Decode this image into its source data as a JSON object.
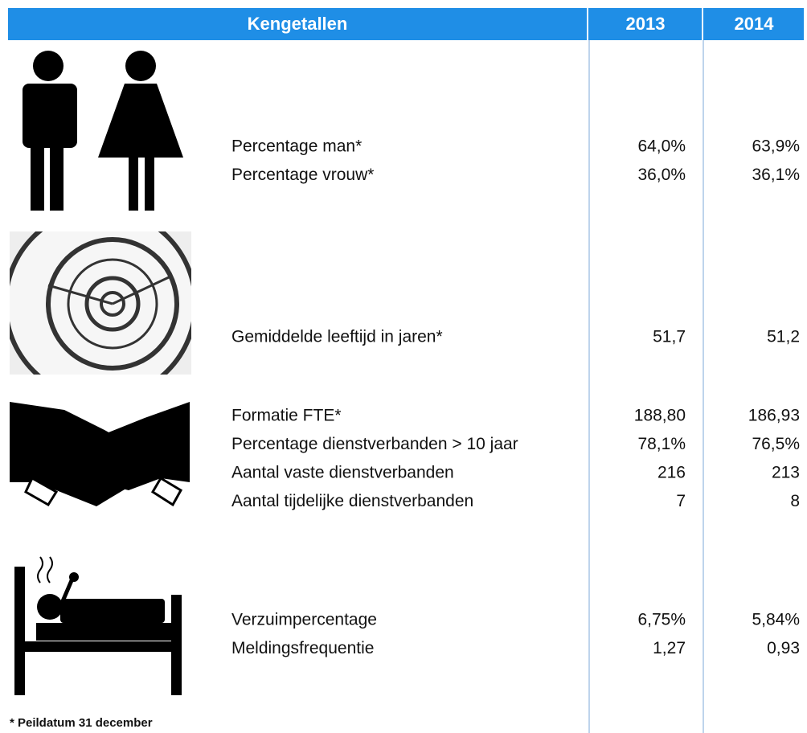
{
  "header": {
    "title": "Kengetallen",
    "years": [
      "2013",
      "2014"
    ]
  },
  "groups": [
    {
      "rows": [
        {
          "label": "Percentage man*",
          "values": [
            "64,0%",
            "63,9%"
          ]
        },
        {
          "label": "Percentage vrouw*",
          "values": [
            "36,0%",
            "36,1%"
          ]
        }
      ]
    },
    {
      "rows": [
        {
          "label": "Gemiddelde leeftijd in jaren*",
          "values": [
            "51,7",
            "51,2"
          ]
        }
      ]
    },
    {
      "rows": [
        {
          "label": "Formatie FTE*",
          "values": [
            "188,80",
            "186,93"
          ]
        },
        {
          "label": "Percentage dienstverbanden > 10 jaar",
          "values": [
            "78,1%",
            "76,5%"
          ]
        },
        {
          "label": "Aantal vaste dienstverbanden",
          "values": [
            "216",
            "213"
          ]
        },
        {
          "label": "Aantal tijdelijke dienstverbanden",
          "values": [
            "7",
            "8"
          ]
        }
      ]
    },
    {
      "rows": [
        {
          "label": "Verzuimpercentage",
          "values": [
            "6,75%",
            "5,84%"
          ]
        },
        {
          "label": "Meldingsfrequentie",
          "values": [
            "1,27",
            "0,93"
          ]
        }
      ]
    }
  ],
  "footnote": "* Peildatum 31 december"
}
